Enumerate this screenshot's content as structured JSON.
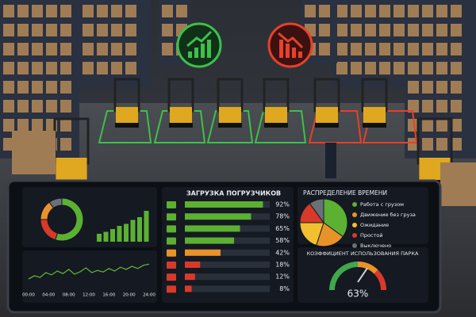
{
  "loading": {
    "title": "ЗАГРУЗКА ПОГРУЗЧИКОВ",
    "values": [
      92,
      78,
      65,
      58,
      42,
      18,
      12,
      8
    ],
    "value_labels": [
      "92%",
      "78%",
      "65%",
      "58%",
      "42%",
      "18%",
      "12%",
      "8%"
    ],
    "colors": [
      "#5cb032",
      "#5cb032",
      "#5cb032",
      "#5cb032",
      "#e8922a",
      "#d83a2a",
      "#d83a2a",
      "#d83a2a"
    ],
    "xlim": [
      0,
      100
    ]
  },
  "time_distribution": {
    "title": "РАСПРЕДЕЛЕНИЕ ВРЕМЕНИ",
    "categories": [
      "Работа с грузом",
      "Движение без груза",
      "Ожидание",
      "Простой",
      "Выключено"
    ],
    "values": [
      35,
      20,
      20,
      15,
      10
    ],
    "colors": [
      "#5cb032",
      "#e8922a",
      "#f0c030",
      "#d83a2a",
      "#6a7078"
    ]
  },
  "fleet_utilization": {
    "title": "КОЭФФИЦИЕНТ ИСПОЛЬЗОВАНИЯ ПАРКА",
    "value": 63,
    "value_label": "63%",
    "range": [
      0,
      100
    ]
  },
  "donut": {
    "values": [
      55,
      20,
      15,
      10
    ],
    "colors": [
      "#5cb032",
      "#d83a2a",
      "#e8922a",
      "#6a7078"
    ]
  },
  "activity_bars": {
    "values": [
      20,
      25,
      32,
      40,
      45,
      55,
      62,
      78
    ],
    "color": "#5cb032",
    "ylim": [
      0,
      100
    ]
  },
  "activity_line": {
    "x_labels": [
      "00:00",
      "04:00",
      "08:00",
      "12:00",
      "16:00",
      "20:00",
      "24:00"
    ],
    "values": [
      25,
      35,
      30,
      45,
      38,
      50,
      42,
      55,
      40,
      48,
      60,
      45,
      52,
      47,
      58,
      50,
      62,
      55,
      65,
      58,
      68,
      72
    ],
    "color": "#5cb032",
    "ylim": [
      0,
      100
    ]
  }
}
